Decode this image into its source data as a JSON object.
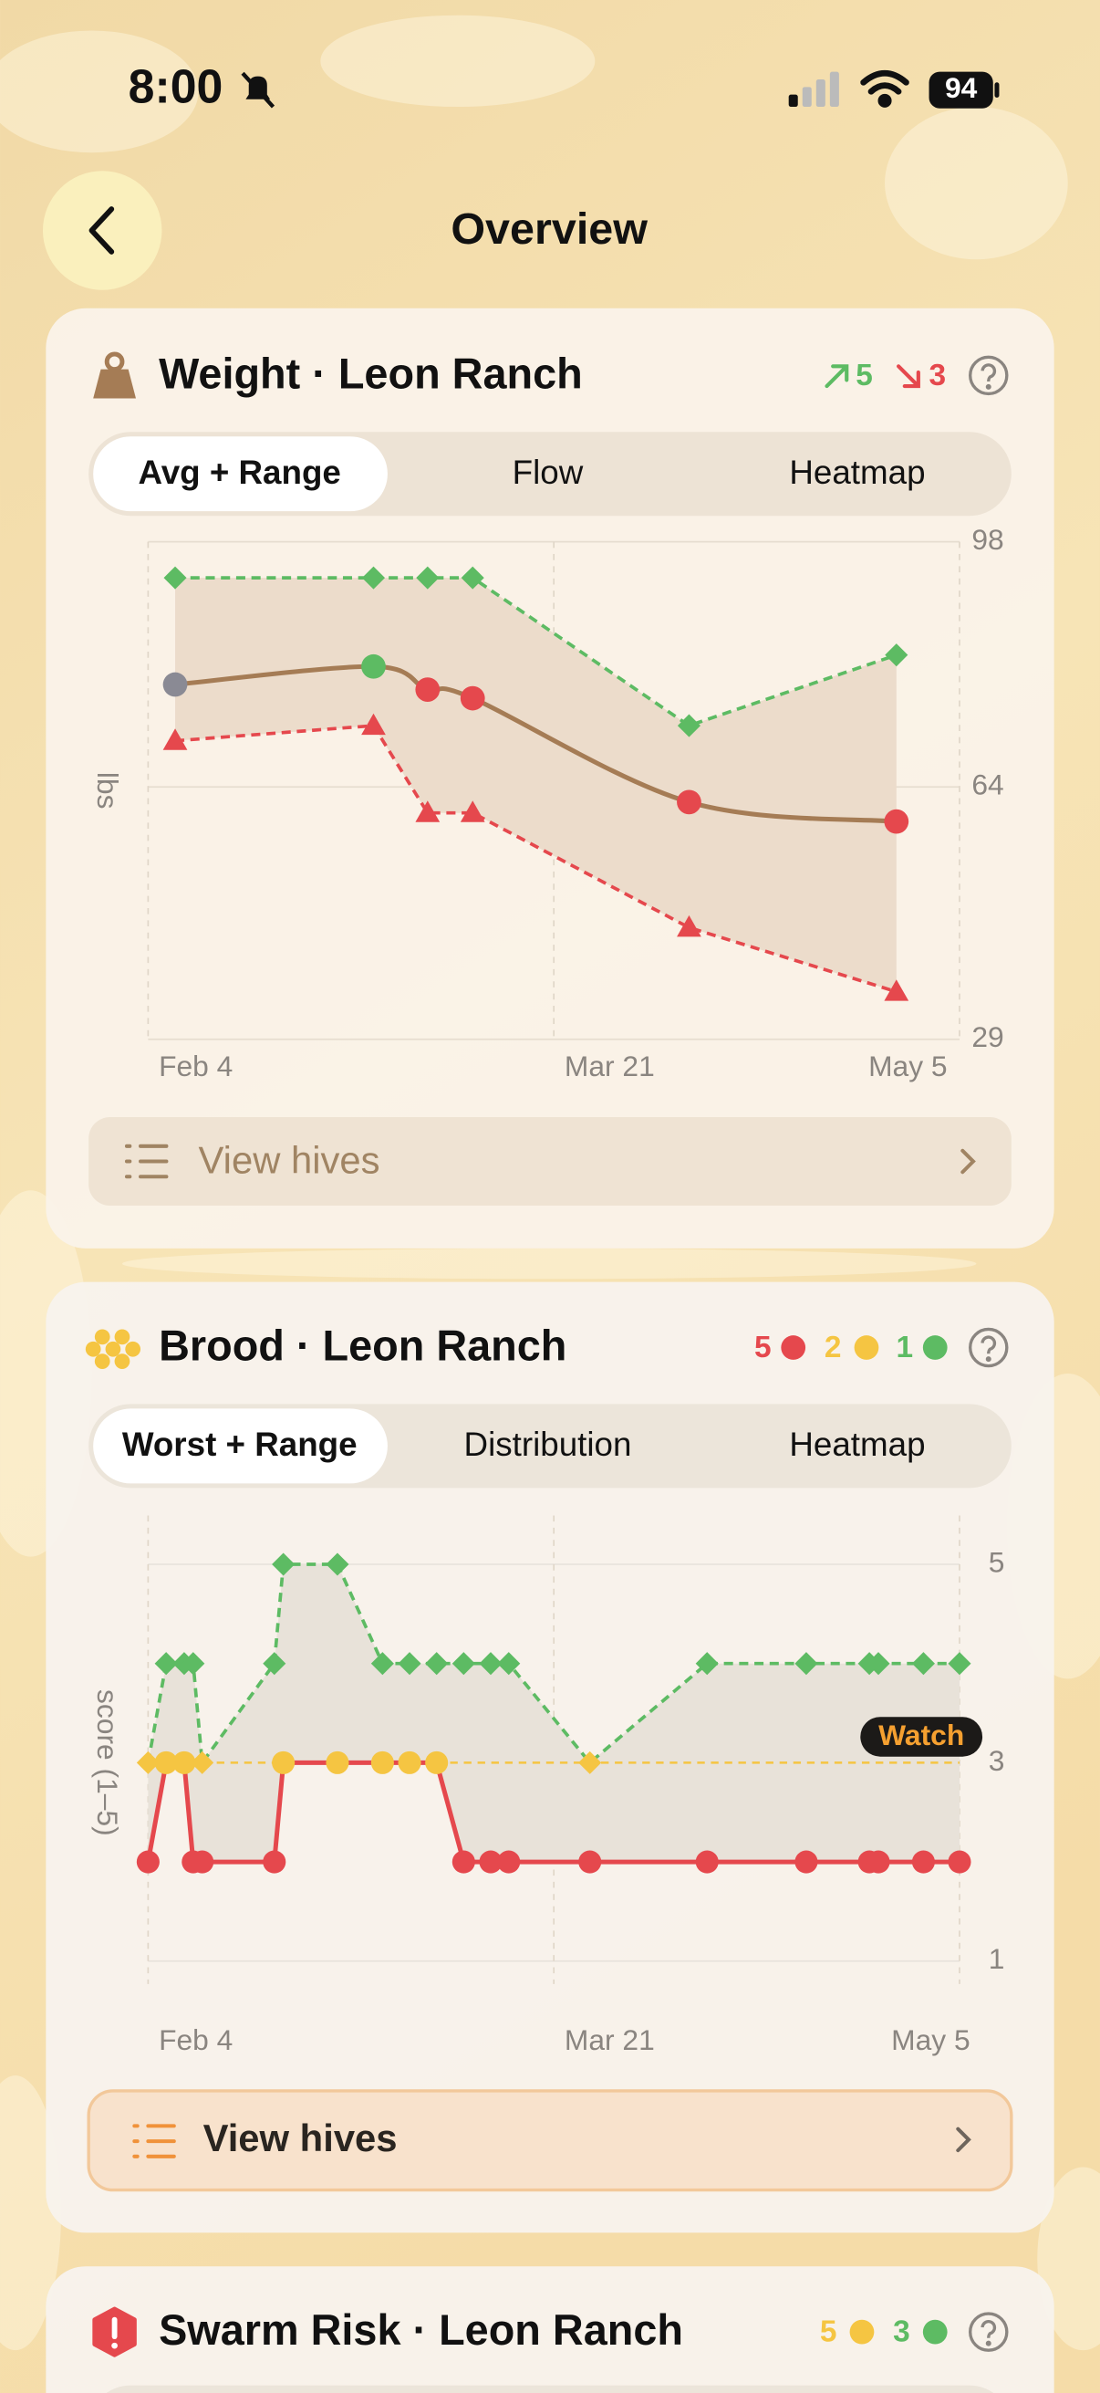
{
  "status_bar": {
    "time": "8:00",
    "battery": "94"
  },
  "header": {
    "title": "Overview"
  },
  "cards": [
    {
      "title": "Weight · Leon Ranch",
      "badges": [
        {
          "value": 5,
          "color": "#5dbb63"
        },
        {
          "value": 3,
          "color": "#e5484d"
        }
      ],
      "tabs": [
        "Avg + Range",
        "Flow",
        "Heatmap"
      ],
      "button": "View hives"
    },
    {
      "title": "Brood · Leon Ranch",
      "badges": [
        {
          "value": 5,
          "color": "#e5484d"
        },
        {
          "value": 2,
          "color": "#f5c542"
        },
        {
          "value": 1,
          "color": "#5dbb63"
        }
      ],
      "tabs": [
        "Worst + Range",
        "Distribution",
        "Heatmap"
      ],
      "button": "View hives"
    },
    {
      "title": "Swarm Risk · Leon Ranch",
      "badges": [
        {
          "value": 5,
          "color": "#f5c542"
        },
        {
          "value": 3,
          "color": "#5dbb63"
        }
      ]
    }
  ],
  "chart_data": [
    {
      "type": "line",
      "y_label": "lbs",
      "x": [
        "Feb 7",
        "Mar 1",
        "Mar 7",
        "Mar 12",
        "Apr 5",
        "Apr 28"
      ],
      "xlim": [
        "Feb 4",
        "May 5"
      ],
      "xticks": [
        "Feb 4",
        "Mar 21",
        "May 5"
      ],
      "ylim": [
        29,
        98
      ],
      "yticks": [
        29,
        64,
        98
      ],
      "grid": true,
      "band_color": "#ecdccb",
      "series": [
        {
          "color": "#5dbb63",
          "marker": "diamond",
          "dash": true,
          "values": [
            93,
            93,
            93,
            93,
            72.5,
            82.3
          ]
        },
        {
          "color": "#a57c55",
          "marker": "circle",
          "smooth": true,
          "values": [
            78.2,
            80.7,
            77.5,
            76.3,
            61.9,
            59.2
          ],
          "point_colors": [
            "#8a8a94",
            "#5dbb63",
            "#e5484d",
            "#e5484d",
            "#e5484d",
            "#e5484d"
          ]
        },
        {
          "color": "#e5484d",
          "marker": "triangle",
          "dash": true,
          "values": [
            70.4,
            72.5,
            60.4,
            60.4,
            44.5,
            35.6
          ]
        }
      ]
    },
    {
      "type": "line",
      "y_label": "score (1–5)",
      "x": [
        "Feb 4",
        "Feb 6",
        "Feb 8",
        "Feb 9",
        "Feb 10",
        "Feb 18",
        "Feb 19",
        "Feb 25",
        "Mar 2",
        "Mar 5",
        "Mar 8",
        "Mar 11",
        "Mar 14",
        "Mar 16",
        "Mar 25",
        "Apr 7",
        "Apr 18",
        "Apr 25",
        "Apr 26",
        "May 1",
        "May 5"
      ],
      "xlim": [
        "Feb 4",
        "May 5"
      ],
      "xticks": [
        "Feb 4",
        "Mar 21",
        "May 5"
      ],
      "ylim": [
        1,
        5
      ],
      "yticks": [
        1,
        3,
        5
      ],
      "grid": true,
      "band_color": "#e8e2d9",
      "threshold": 3,
      "threshold_label": "Watch",
      "threshold_color": "#f5c542",
      "series": [
        {
          "color": "#5dbb63",
          "marker": "diamond",
          "dash": true,
          "values": [
            3,
            4,
            4,
            4,
            3,
            4,
            5,
            5,
            4,
            4,
            4,
            4,
            4,
            4,
            3,
            4,
            4,
            4,
            4,
            4,
            4
          ]
        },
        {
          "color": "#e5484d",
          "marker": "circle",
          "values": [
            2,
            3,
            3,
            2,
            2,
            2,
            3,
            3,
            3,
            3,
            3,
            2,
            2,
            2,
            2,
            2,
            2,
            2,
            2,
            2,
            2
          ]
        }
      ]
    }
  ]
}
